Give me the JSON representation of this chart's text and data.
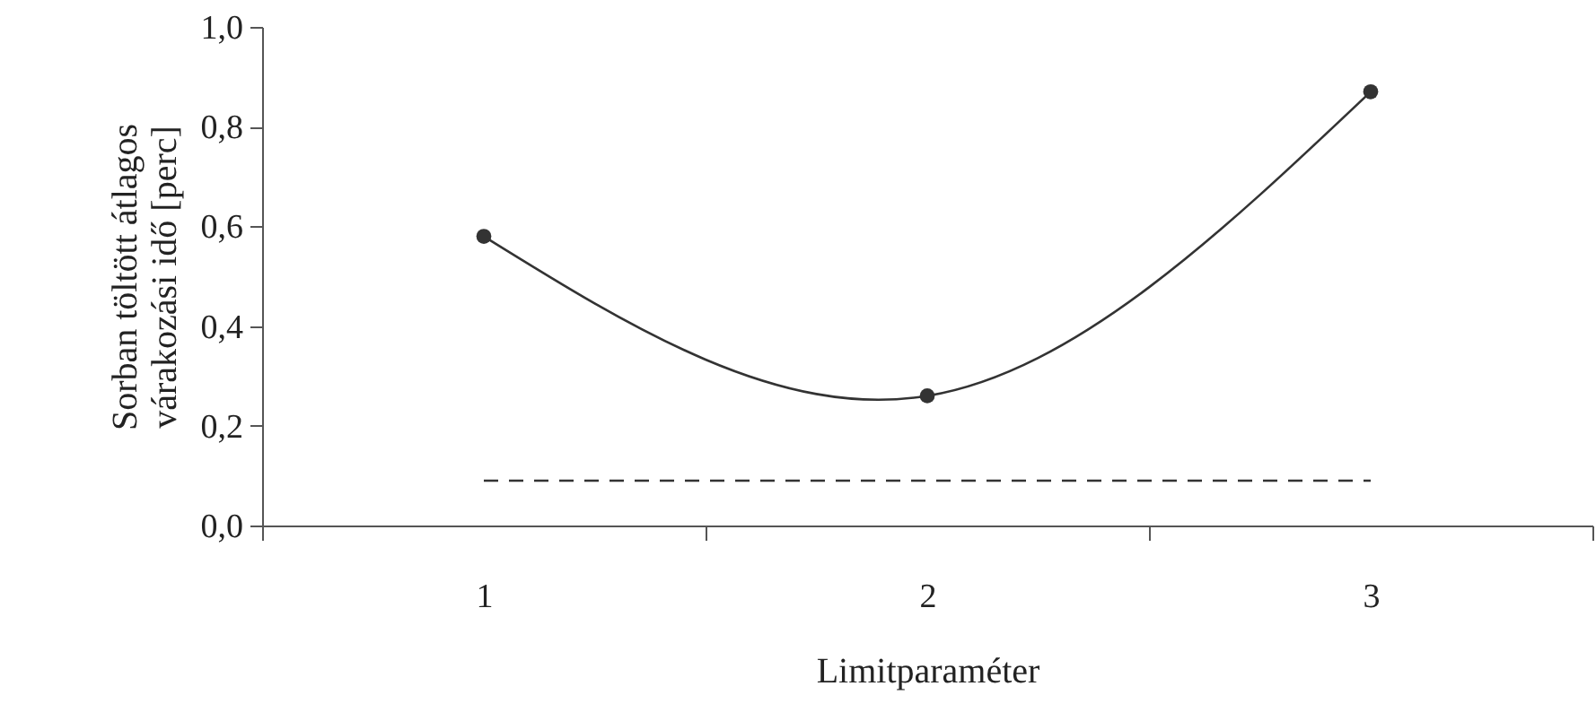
{
  "chart_data": {
    "type": "line",
    "xlabel": "Limitparaméter",
    "ylabel": "Sorban töltött átlagos várakozási idő [perc]",
    "categories": [
      "1",
      "2",
      "3"
    ],
    "ylim": [
      0,
      1
    ],
    "yticks": [
      {
        "value": 0,
        "label": "0,0"
      },
      {
        "value": 0.2,
        "label": "0,2"
      },
      {
        "value": 0.4,
        "label": "0,4"
      },
      {
        "value": 0.6,
        "label": "0,6"
      },
      {
        "value": 0.8,
        "label": "0,8"
      },
      {
        "value": 1,
        "label": "1,0"
      }
    ],
    "series": [
      {
        "color": "#333333",
        "values": [
          0.58,
          0.26,
          0.87
        ],
        "marker": "circle",
        "line_style": "solid"
      },
      {
        "color": "#333333",
        "values": [
          0.09,
          0.09,
          0.09
        ],
        "marker": "none",
        "line_style": "dashed"
      }
    ]
  }
}
